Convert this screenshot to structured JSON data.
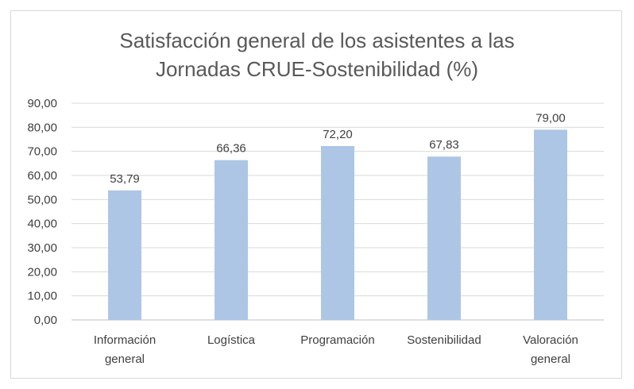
{
  "chart_data": {
    "type": "bar",
    "title_lines": [
      "Satisfacción general de los asistentes a las",
      "Jornadas CRUE-Sostenibilidad (%)"
    ],
    "categories": [
      [
        "Información",
        "general"
      ],
      [
        "Logística"
      ],
      [
        "Programación"
      ],
      [
        "Sostenibilidad"
      ],
      [
        "Valoración",
        "general"
      ]
    ],
    "values": [
      53.79,
      66.36,
      72.2,
      67.83,
      79.0
    ],
    "data_labels": [
      "53,79",
      "66,36",
      "72,20",
      "67,83",
      "79,00"
    ],
    "ylim": [
      0,
      90
    ],
    "yticks": [
      "0,00",
      "10,00",
      "20,00",
      "30,00",
      "40,00",
      "50,00",
      "60,00",
      "70,00",
      "80,00",
      "90,00"
    ],
    "grid": true,
    "bar_color": "#adc6e5",
    "xlabel": "",
    "ylabel": ""
  }
}
